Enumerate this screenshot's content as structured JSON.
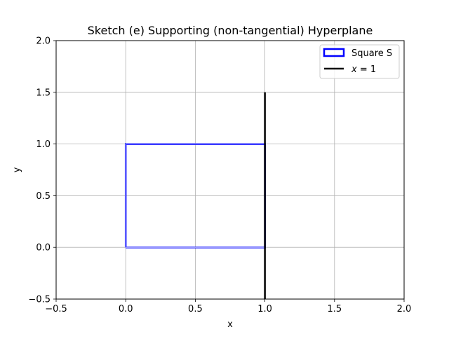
{
  "chart_data": {
    "type": "line",
    "title": "Sketch (e) Supporting (non-tangential) Hyperplane",
    "xlabel": "x",
    "ylabel": "y",
    "xlim": [
      -0.5,
      2.0
    ],
    "ylim": [
      -0.5,
      2.0
    ],
    "xticks": [
      "−0.5",
      "0.0",
      "0.5",
      "1.0",
      "1.5",
      "2.0"
    ],
    "yticks": [
      "−0.5",
      "0.0",
      "0.5",
      "1.0",
      "1.5",
      "2.0"
    ],
    "xtick_values": [
      -0.5,
      0.0,
      0.5,
      1.0,
      1.5,
      2.0
    ],
    "ytick_values": [
      -0.5,
      0.0,
      0.5,
      1.0,
      1.5,
      2.0
    ],
    "grid": true,
    "legend_position": "top-right",
    "series": [
      {
        "name": "Square S",
        "kind": "rectangle",
        "color": "#0000ff",
        "x": [
          0,
          1,
          1,
          0,
          0
        ],
        "y": [
          0,
          0,
          1,
          1,
          0
        ]
      },
      {
        "name": "x = 1",
        "kind": "line",
        "color": "#000000",
        "x": [
          1,
          1
        ],
        "y": [
          -0.5,
          1.5
        ]
      }
    ]
  }
}
